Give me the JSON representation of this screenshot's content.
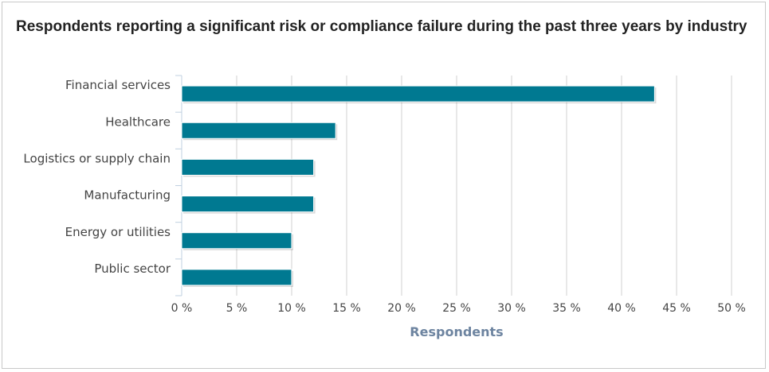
{
  "chart_data": {
    "type": "bar",
    "orientation": "horizontal",
    "title": "Respondents reporting a significant risk or compliance failure during the past three years by industry",
    "categories": [
      "Financial services",
      "Healthcare",
      "Logistics or supply chain",
      "Manufacturing",
      "Energy or utilities",
      "Public sector"
    ],
    "values": [
      43,
      14,
      12,
      12,
      10,
      10
    ],
    "value_axis_label": "Respondents",
    "xlim": [
      0,
      50
    ],
    "ticks": [
      0,
      5,
      10,
      15,
      20,
      25,
      30,
      35,
      40,
      45,
      50
    ],
    "tick_labels": [
      "0 %",
      "5 %",
      "10 %",
      "15 %",
      "20 %",
      "25 %",
      "30 %",
      "35 %",
      "40 %",
      "45 %",
      "50 %"
    ],
    "grid": true,
    "legend": "none",
    "bar_color": "#007991"
  }
}
